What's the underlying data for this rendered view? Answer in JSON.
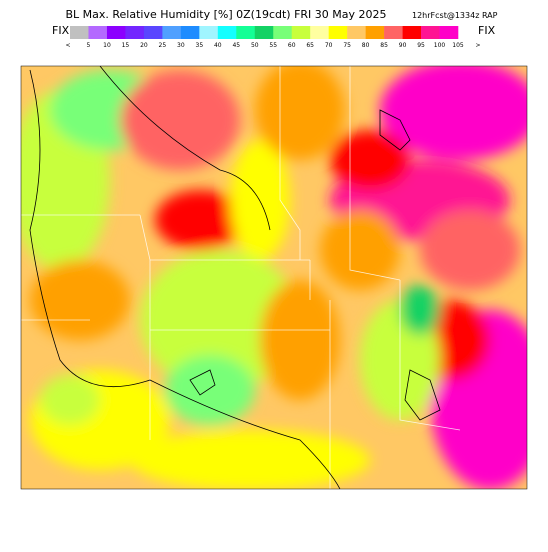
{
  "header": {
    "title": "BL Max. Relative Humidity [%] 0Z(19cdt) FRI 30 May 2025",
    "subtitle": "12hrFcst@1334z RAP",
    "fix_left": "FIX",
    "fix_right": "FIX"
  },
  "colorbar": {
    "labels": [
      "<",
      "5",
      "10",
      "15",
      "20",
      "25",
      "30",
      "35",
      "40",
      "45",
      "50",
      "55",
      "60",
      "65",
      "70",
      "75",
      "80",
      "85",
      "90",
      "95",
      "100",
      "105",
      ">"
    ],
    "colors": [
      "#c0c0c0",
      "#b469ff",
      "#8c00ff",
      "#7326ff",
      "#5a46ff",
      "#50a0ff",
      "#1e8cff",
      "#a0f5ff",
      "#14ffff",
      "#14ff96",
      "#14d264",
      "#78ff78",
      "#c8ff3c",
      "#ffffa0",
      "#ffff00",
      "#ffc864",
      "#ffa000",
      "#ff6464",
      "#ff0000",
      "#ff1493",
      "#ff00c8"
    ]
  }
}
